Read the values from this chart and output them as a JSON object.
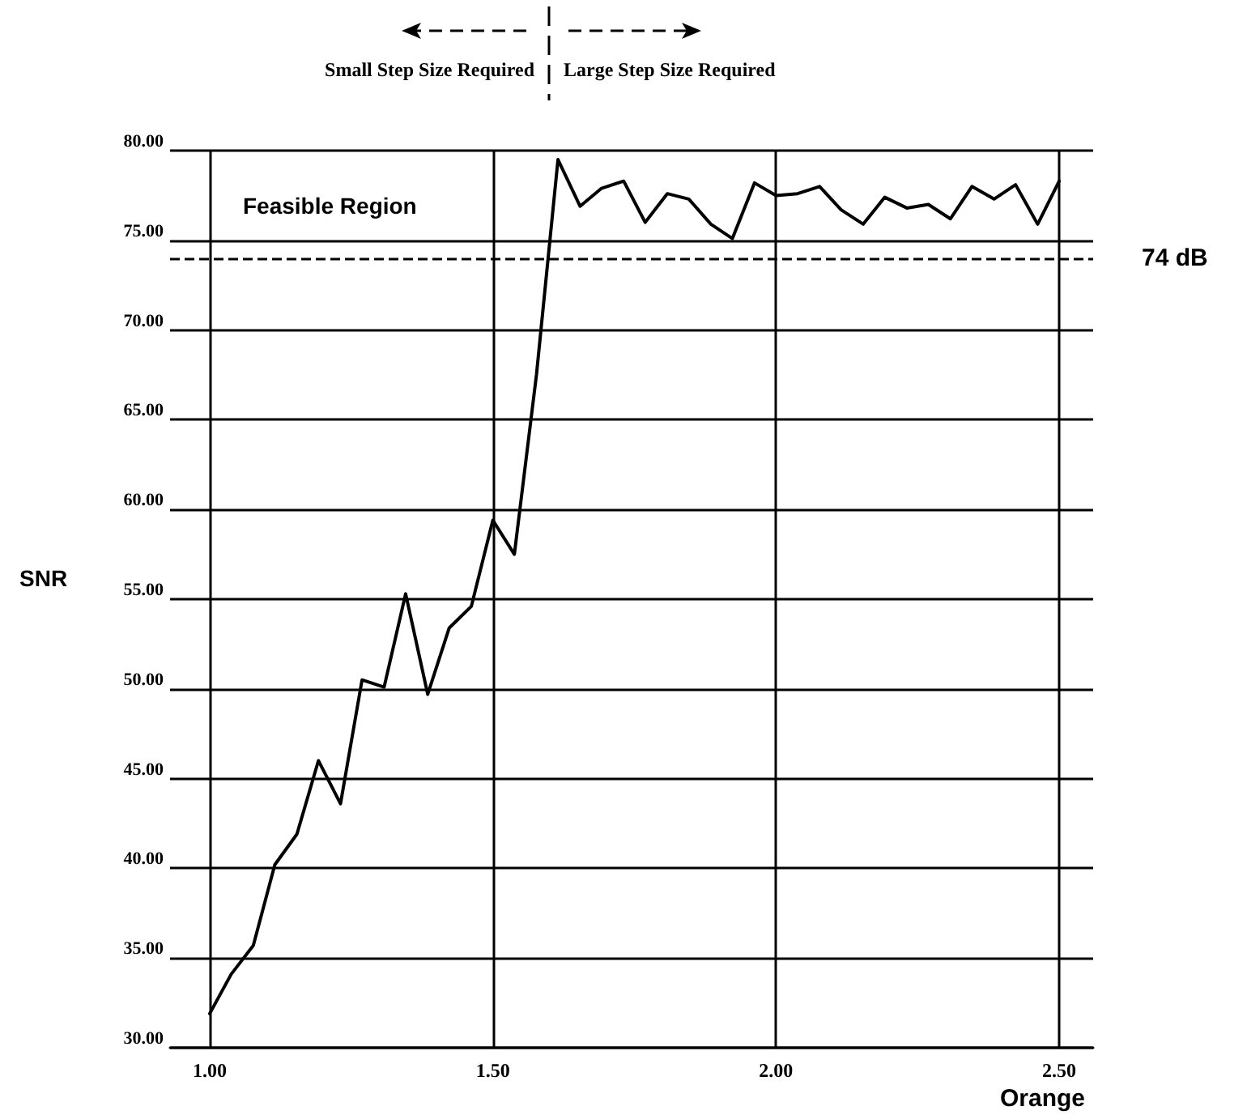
{
  "chart_data": {
    "type": "line",
    "xlabel": "Orange",
    "ylabel": "SNR",
    "annotations": [
      "Small Step Size Required",
      "Large Step Size Required",
      "Feasible Region"
    ],
    "series": [
      {
        "color": "#000000",
        "x": [
          1.0,
          1.038,
          1.077,
          1.115,
          1.154,
          1.192,
          1.231,
          1.269,
          1.308,
          1.346,
          1.385,
          1.423,
          1.462,
          1.5,
          1.538,
          1.577,
          1.615,
          1.654,
          1.692,
          1.731,
          1.769,
          1.808,
          1.846,
          1.885,
          1.923,
          1.962,
          2.0,
          2.038,
          2.077,
          2.115,
          2.154,
          2.192,
          2.231,
          2.269,
          2.308,
          2.346,
          2.385,
          2.423,
          2.462,
          2.5
        ],
        "values": [
          31.9,
          34.1,
          35.7,
          40.2,
          41.9,
          46.0,
          43.6,
          50.5,
          50.1,
          55.3,
          49.7,
          53.4,
          54.6,
          59.4,
          57.5,
          67.5,
          79.5,
          76.9,
          77.9,
          78.3,
          76.0,
          77.6,
          77.3,
          75.9,
          75.1,
          78.2,
          77.5,
          77.6,
          78.0,
          76.7,
          75.9,
          77.4,
          76.8,
          77.0,
          76.2,
          78.0,
          77.3,
          78.1,
          75.9,
          78.3
        ]
      }
    ],
    "xlim": [
      0.93,
      2.56
    ],
    "xticks": [
      {
        "value": 1.0,
        "label": "1.00"
      },
      {
        "value": 1.5,
        "label": "1.50"
      },
      {
        "value": 2.0,
        "label": "2.00"
      },
      {
        "value": 2.5,
        "label": "2.50"
      }
    ],
    "ylim": [
      30,
      80
    ],
    "yticks": [
      {
        "value": 30,
        "label": "30.00"
      },
      {
        "value": 35,
        "label": "35.00"
      },
      {
        "value": 40,
        "label": "40.00"
      },
      {
        "value": 45,
        "label": "45.00"
      },
      {
        "value": 50,
        "label": "50.00"
      },
      {
        "value": 55,
        "label": "55.00"
      },
      {
        "value": 60,
        "label": "60.00"
      },
      {
        "value": 65,
        "label": "65.00"
      },
      {
        "value": 70,
        "label": "70.00"
      },
      {
        "value": 75,
        "label": "75.00"
      },
      {
        "value": 80,
        "label": "80.00"
      }
    ],
    "ref_lines": [
      {
        "axis": "y",
        "value": 74,
        "label": "74 dB",
        "line_style": "dashed",
        "color": "#000000"
      }
    ],
    "grid": true,
    "marker": "none",
    "line_style": "solid"
  }
}
